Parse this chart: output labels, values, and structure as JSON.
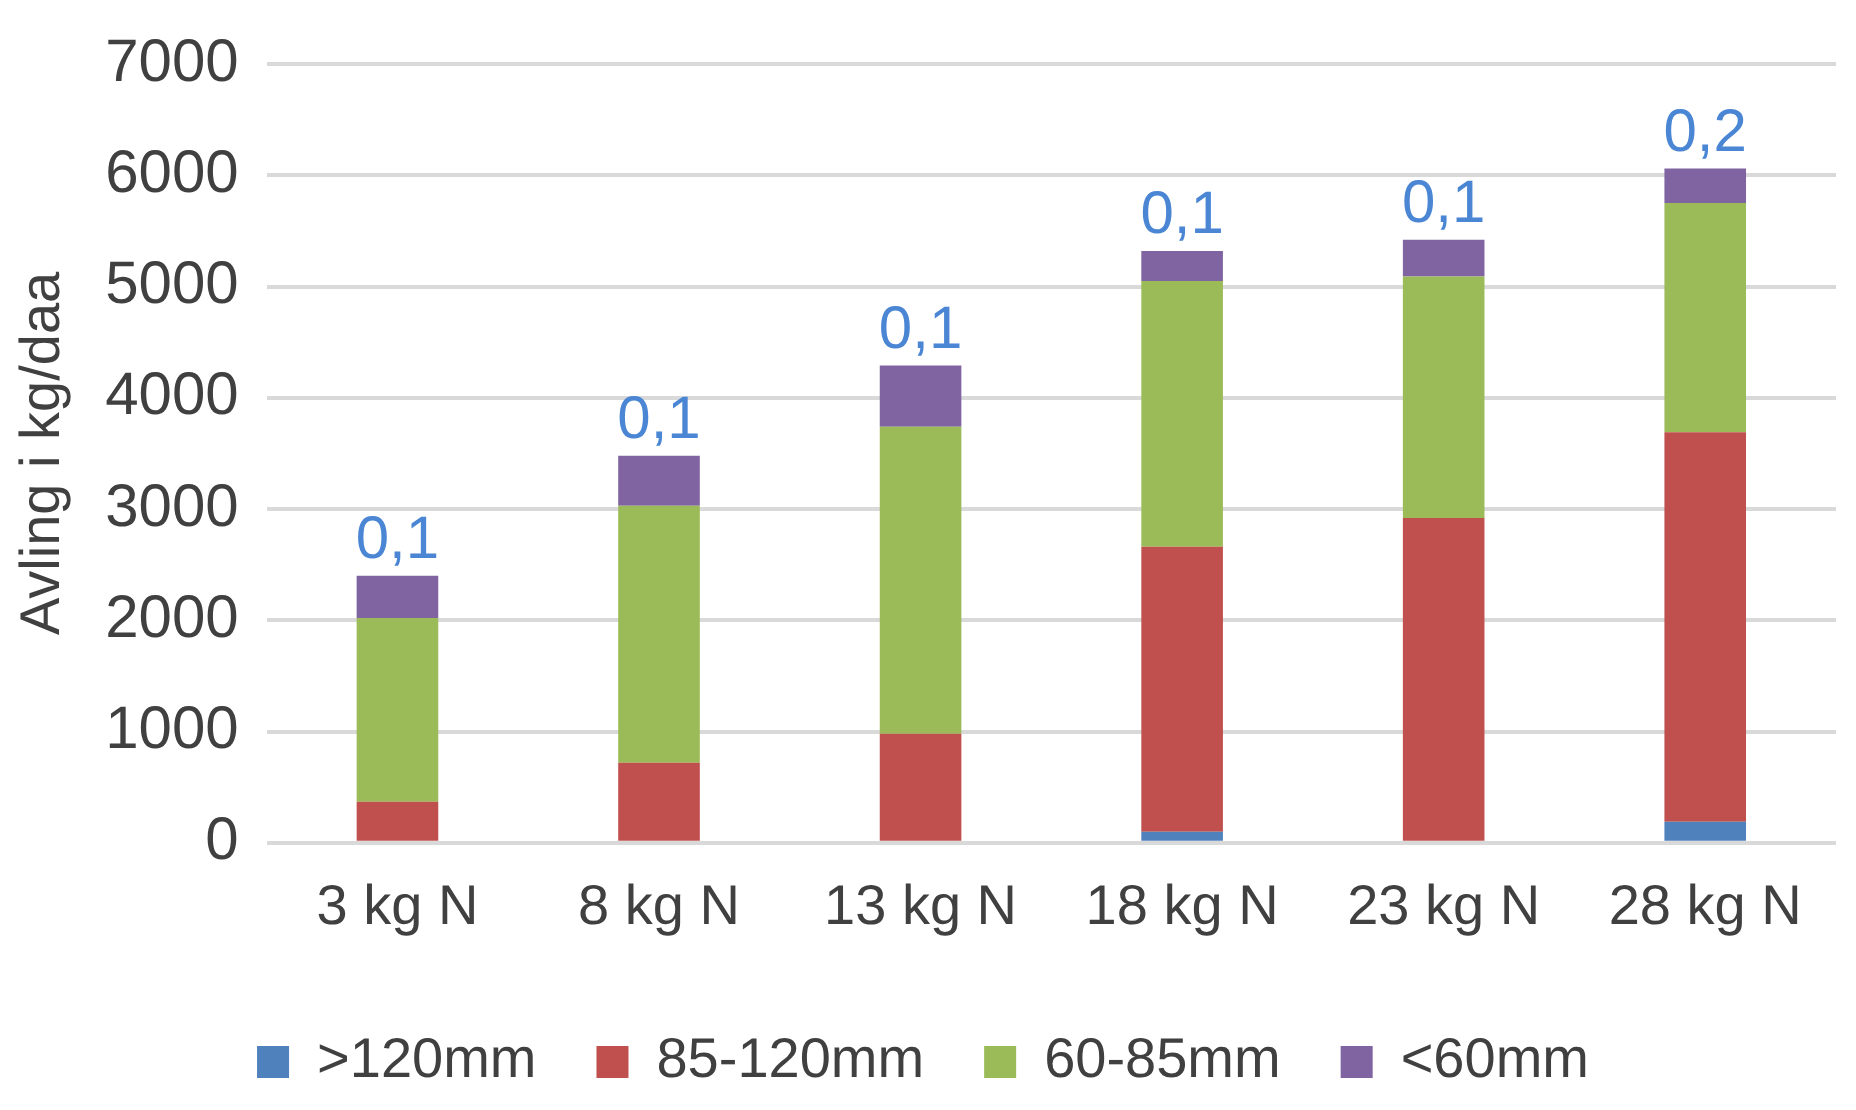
{
  "chart_data": {
    "type": "bar",
    "stacked": true,
    "ylabel": "Avling i kg/daa",
    "categories": [
      "3 kg N",
      "8 kg N",
      "13 kg N",
      "18 kg N",
      "23 kg N",
      "28 kg N"
    ],
    "series": [
      {
        "name": ">120mm",
        "color": "#4f81bd",
        "values": [
          0,
          0,
          0,
          100,
          0,
          190
        ]
      },
      {
        "name": "85-120mm",
        "color": "#c0504d",
        "values": [
          370,
          720,
          980,
          2560,
          2920,
          3500
        ]
      },
      {
        "name": "60-85mm",
        "color": "#9bbb59",
        "values": [
          1650,
          2310,
          2760,
          2390,
          2170,
          2060
        ]
      },
      {
        "name": "<60mm",
        "color": "#8064a2",
        "values": [
          380,
          450,
          550,
          270,
          330,
          310
        ]
      }
    ],
    "ylim": [
      0,
      7000
    ],
    "yticks": [
      0,
      1000,
      2000,
      3000,
      4000,
      5000,
      6000,
      7000
    ],
    "grid": "y",
    "legend": "bottom",
    "annotations": [
      {
        "text": "0,1",
        "x": "3 kg N",
        "y": 2400
      },
      {
        "text": "0,1",
        "x": "8 kg N",
        "y": 3480
      },
      {
        "text": "0,1",
        "x": "13 kg N",
        "y": 4290
      },
      {
        "text": "0,1",
        "x": "18 kg N",
        "y": 5320
      },
      {
        "text": "0,1",
        "x": "23 kg N",
        "y": 5420
      },
      {
        "text": "0,2",
        "x": "28 kg N",
        "y": 6060
      }
    ]
  }
}
